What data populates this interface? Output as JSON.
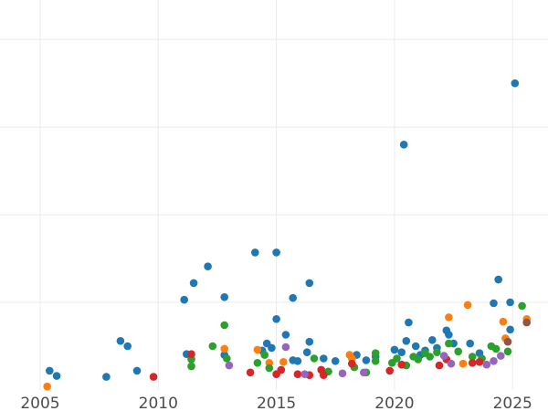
{
  "chart_data": {
    "type": "scatter",
    "title": "",
    "xlabel": "",
    "ylabel": "",
    "xlim": [
      2003.3,
      2026.5
    ],
    "ylim": [
      0,
      4.45
    ],
    "x_ticks": [
      2005,
      2010,
      2015,
      2020,
      2025
    ],
    "x_tick_labels": [
      "2005",
      "2010",
      "2015",
      "2020",
      "2025"
    ],
    "y_gridlines": [
      1,
      2,
      3,
      4
    ],
    "grid": true,
    "legend": "none",
    "series": [
      {
        "color": "#1f77b4",
        "points": [
          [
            2005.4,
            0.22
          ],
          [
            2005.7,
            0.16
          ],
          [
            2007.8,
            0.15
          ],
          [
            2008.4,
            0.56
          ],
          [
            2008.7,
            0.5
          ],
          [
            2009.1,
            0.22
          ],
          [
            2011.1,
            1.03
          ],
          [
            2011.2,
            0.41
          ],
          [
            2011.5,
            1.22
          ],
          [
            2012.1,
            1.41
          ],
          [
            2012.8,
            1.06
          ],
          [
            2012.8,
            0.4
          ],
          [
            2014.1,
            1.57
          ],
          [
            2014.4,
            0.45
          ],
          [
            2014.6,
            0.53
          ],
          [
            2014.8,
            0.48
          ],
          [
            2015.0,
            1.57
          ],
          [
            2015.0,
            0.81
          ],
          [
            2015.4,
            0.63
          ],
          [
            2015.7,
            1.05
          ],
          [
            2015.7,
            0.34
          ],
          [
            2015.9,
            0.33
          ],
          [
            2016.3,
            0.43
          ],
          [
            2016.4,
            1.22
          ],
          [
            2016.4,
            0.55
          ],
          [
            2017.0,
            0.36
          ],
          [
            2017.5,
            0.33
          ],
          [
            2018.4,
            0.4
          ],
          [
            2018.8,
            0.34
          ],
          [
            2019.2,
            0.38
          ],
          [
            2020.0,
            0.46
          ],
          [
            2020.3,
            0.43
          ],
          [
            2020.4,
            2.8
          ],
          [
            2020.5,
            0.56
          ],
          [
            2020.6,
            0.77
          ],
          [
            2020.9,
            0.5
          ],
          [
            2021.1,
            0.4
          ],
          [
            2021.3,
            0.45
          ],
          [
            2021.6,
            0.57
          ],
          [
            2021.8,
            0.48
          ],
          [
            2022.2,
            0.68
          ],
          [
            2022.3,
            0.63
          ],
          [
            2022.5,
            0.53
          ],
          [
            2023.2,
            0.53
          ],
          [
            2023.6,
            0.42
          ],
          [
            2024.2,
            0.99
          ],
          [
            2024.4,
            1.26
          ],
          [
            2024.9,
            1.0
          ],
          [
            2024.9,
            0.69
          ],
          [
            2025.1,
            3.5
          ]
        ]
      },
      {
        "color": "#ff7f0e",
        "points": [
          [
            2005.3,
            0.04
          ],
          [
            2012.8,
            0.47
          ],
          [
            2014.2,
            0.46
          ],
          [
            2014.7,
            0.31
          ],
          [
            2015.3,
            0.32
          ],
          [
            2018.1,
            0.4
          ],
          [
            2018.2,
            0.36
          ],
          [
            2022.3,
            0.83
          ],
          [
            2022.9,
            0.3
          ],
          [
            2023.1,
            0.97
          ],
          [
            2024.6,
            0.78
          ],
          [
            2024.7,
            0.59
          ],
          [
            2025.6,
            0.81
          ]
        ]
      },
      {
        "color": "#2ca02c",
        "points": [
          [
            2011.4,
            0.35
          ],
          [
            2011.4,
            0.27
          ],
          [
            2012.3,
            0.5
          ],
          [
            2012.9,
            0.36
          ],
          [
            2012.8,
            0.74
          ],
          [
            2014.2,
            0.31
          ],
          [
            2014.5,
            0.4
          ],
          [
            2014.7,
            0.25
          ],
          [
            2016.6,
            0.36
          ],
          [
            2017.2,
            0.21
          ],
          [
            2018.3,
            0.26
          ],
          [
            2018.8,
            0.2
          ],
          [
            2019.2,
            0.42
          ],
          [
            2019.2,
            0.33
          ],
          [
            2019.9,
            0.31
          ],
          [
            2020.1,
            0.36
          ],
          [
            2020.5,
            0.28
          ],
          [
            2020.8,
            0.38
          ],
          [
            2021.0,
            0.35
          ],
          [
            2021.3,
            0.42
          ],
          [
            2021.5,
            0.38
          ],
          [
            2021.8,
            0.43
          ],
          [
            2022.3,
            0.53
          ],
          [
            2022.7,
            0.44
          ],
          [
            2023.3,
            0.38
          ],
          [
            2023.7,
            0.36
          ],
          [
            2024.1,
            0.5
          ],
          [
            2024.3,
            0.47
          ],
          [
            2024.8,
            0.44
          ],
          [
            2025.4,
            0.96
          ]
        ]
      },
      {
        "color": "#d62728",
        "points": [
          [
            2009.8,
            0.15
          ],
          [
            2011.4,
            0.41
          ],
          [
            2013.9,
            0.2
          ],
          [
            2015.0,
            0.18
          ],
          [
            2015.2,
            0.23
          ],
          [
            2015.9,
            0.18
          ],
          [
            2016.4,
            0.17
          ],
          [
            2016.9,
            0.23
          ],
          [
            2017.0,
            0.17
          ],
          [
            2018.2,
            0.3
          ],
          [
            2019.8,
            0.22
          ],
          [
            2020.3,
            0.29
          ],
          [
            2021.9,
            0.28
          ],
          [
            2022.2,
            0.35
          ],
          [
            2023.3,
            0.31
          ],
          [
            2023.6,
            0.32
          ]
        ]
      },
      {
        "color": "#9467bd",
        "points": [
          [
            2013.0,
            0.28
          ],
          [
            2015.4,
            0.49
          ],
          [
            2016.2,
            0.18
          ],
          [
            2017.8,
            0.19
          ],
          [
            2018.7,
            0.2
          ],
          [
            2022.1,
            0.39
          ],
          [
            2022.4,
            0.3
          ],
          [
            2023.9,
            0.29
          ],
          [
            2024.2,
            0.33
          ],
          [
            2024.5,
            0.39
          ]
        ]
      },
      {
        "color": "#8c564b",
        "points": [
          [
            2024.8,
            0.55
          ],
          [
            2025.6,
            0.77
          ]
        ]
      }
    ]
  }
}
